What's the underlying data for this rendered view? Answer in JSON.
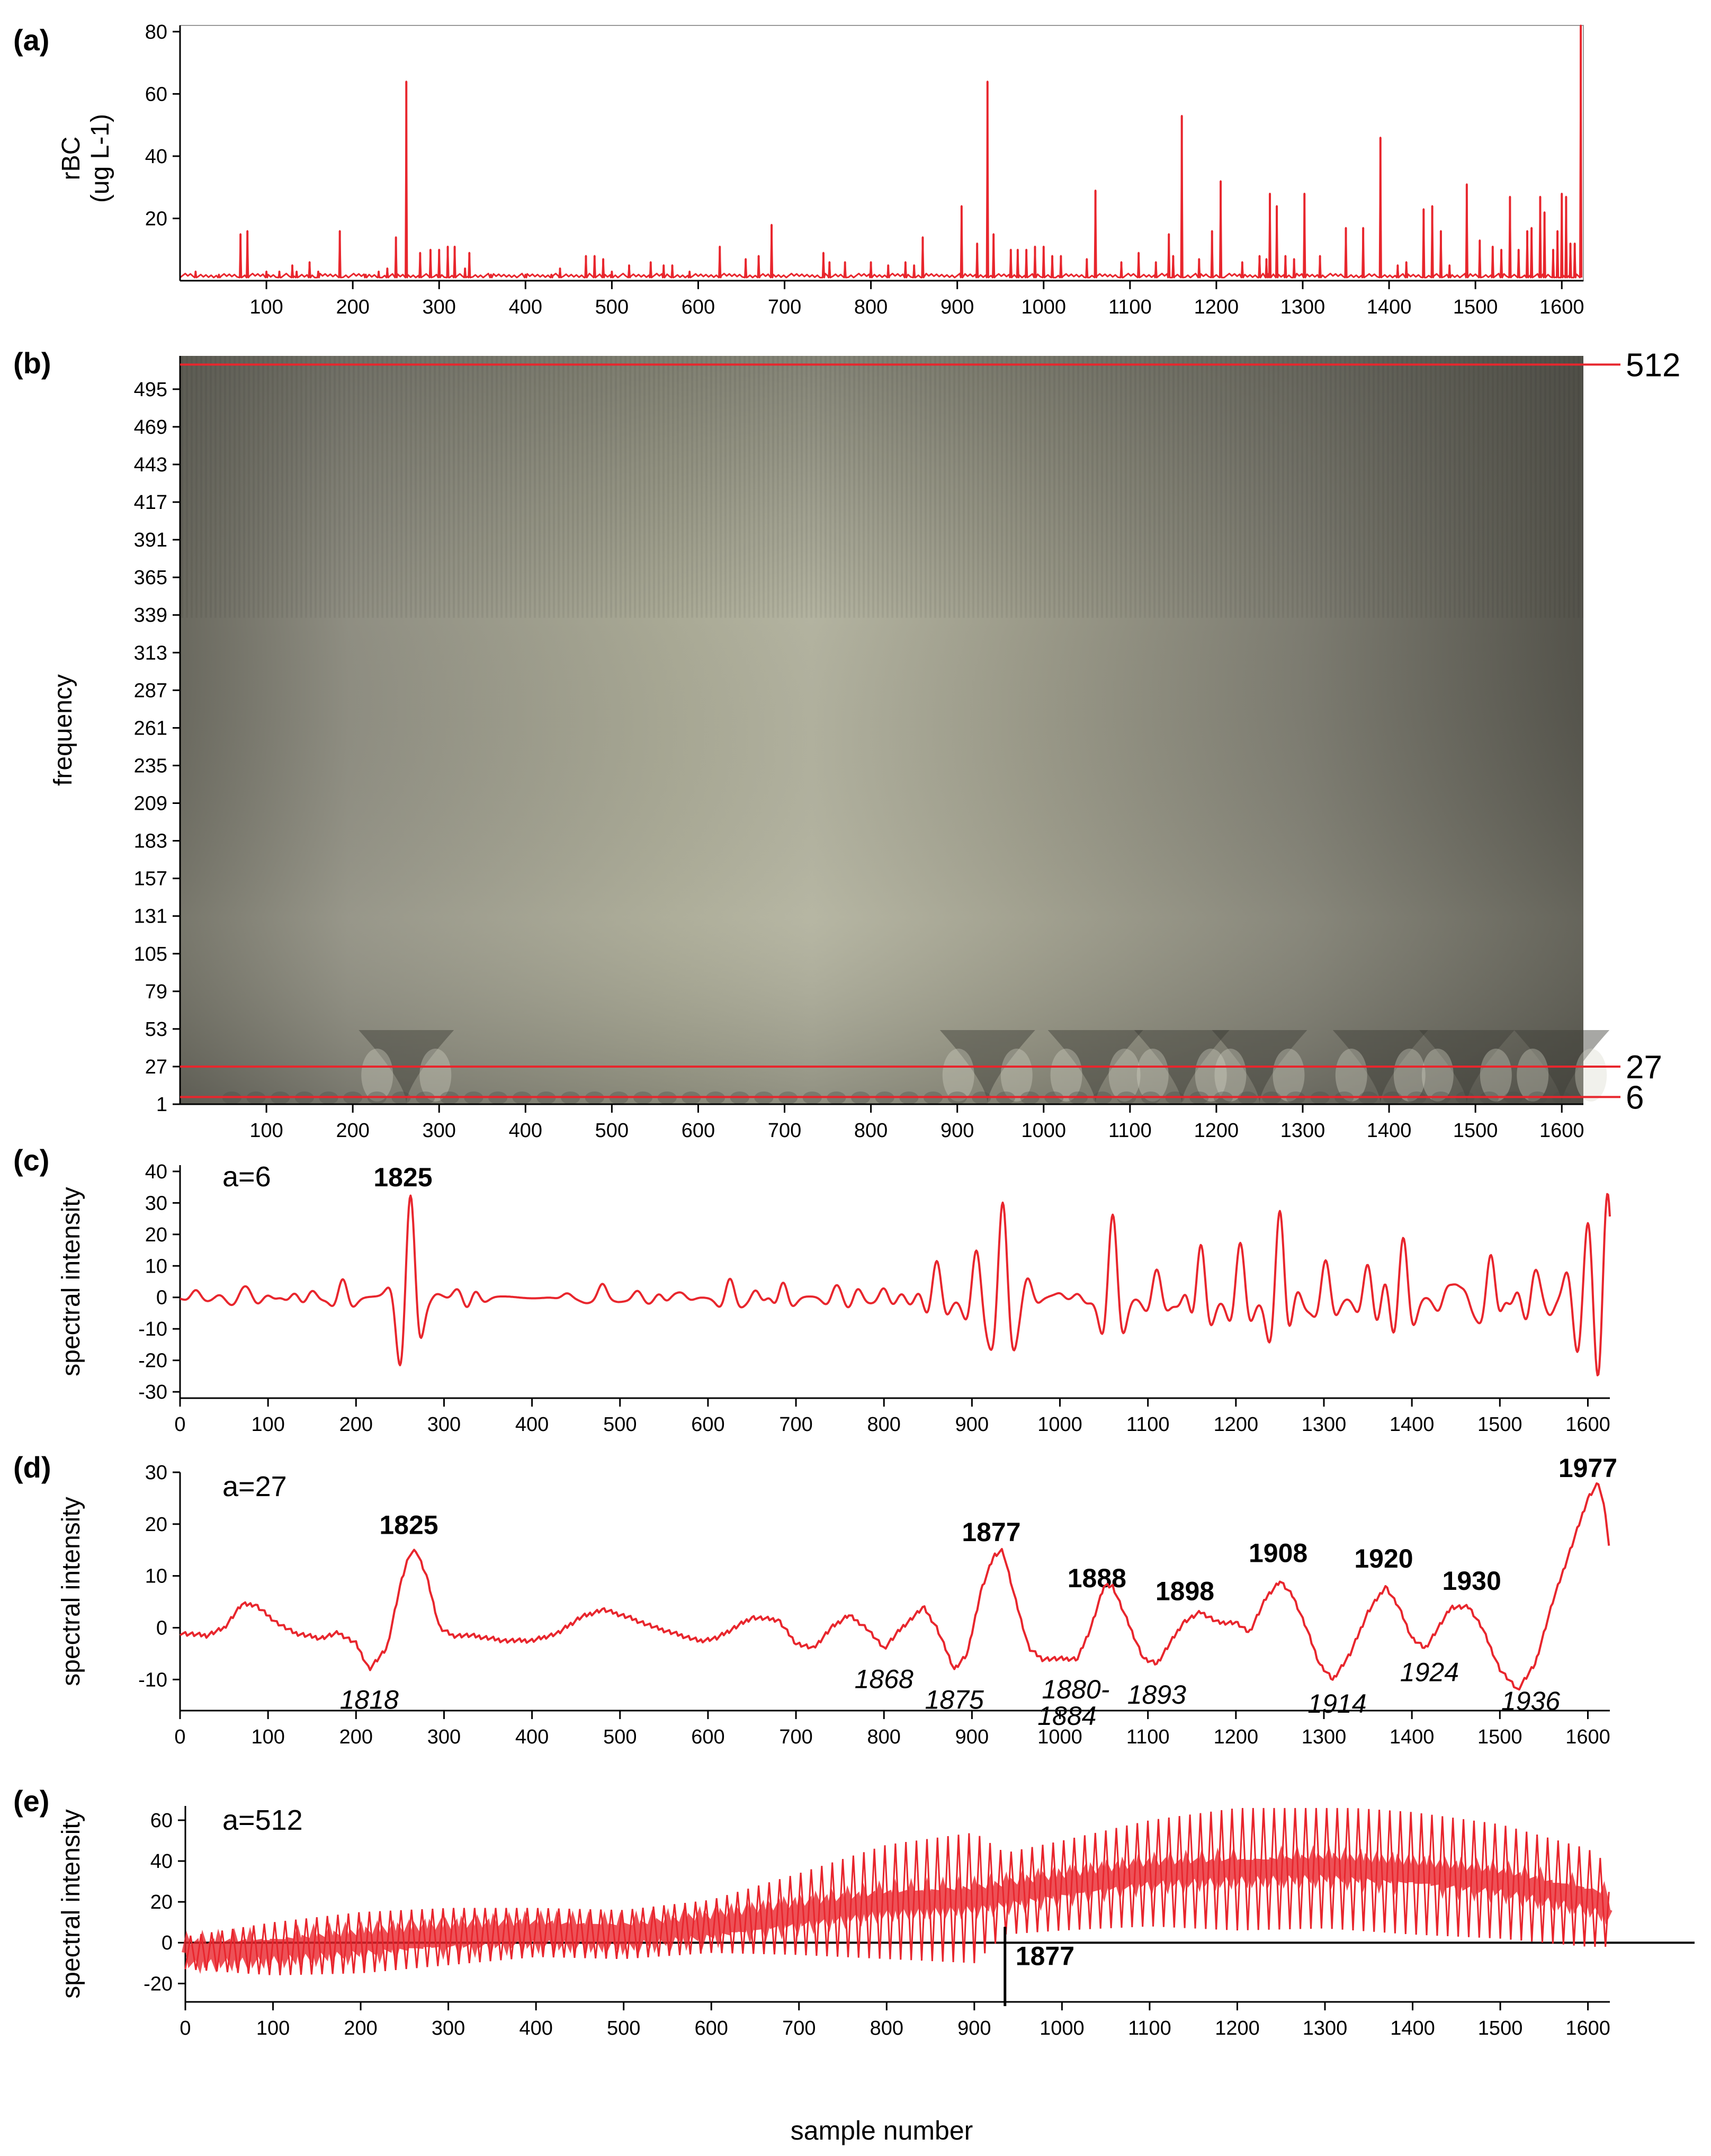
{
  "colors": {
    "series": "#e8262d",
    "axis": "#000000",
    "marker": "#e8262d",
    "spectrogram_light": "#b5b5a0",
    "spectrogram_dark": "#55544c"
  },
  "xlabel": "sample number",
  "chart_data": [
    {
      "id": "a",
      "panel_label": "(a)",
      "type": "line",
      "ylabel_main": "rBC",
      "ylabel_unit": "(ug L-1)",
      "xlim": [
        0,
        1625
      ],
      "ylim": [
        0,
        82
      ],
      "xticks": [
        100,
        200,
        300,
        400,
        500,
        600,
        700,
        800,
        900,
        1000,
        1100,
        1200,
        1300,
        1400,
        1500,
        1600
      ],
      "yticks": [
        20,
        40,
        60,
        80
      ],
      "baseline": 1,
      "peaks": [
        [
          18,
          3
        ],
        [
          45,
          2
        ],
        [
          70,
          15
        ],
        [
          78,
          16
        ],
        [
          100,
          3
        ],
        [
          115,
          3
        ],
        [
          130,
          5
        ],
        [
          135,
          3
        ],
        [
          150,
          6
        ],
        [
          160,
          3
        ],
        [
          185,
          16
        ],
        [
          215,
          2
        ],
        [
          230,
          3
        ],
        [
          240,
          4
        ],
        [
          250,
          14
        ],
        [
          262,
          64
        ],
        [
          278,
          9
        ],
        [
          290,
          10
        ],
        [
          300,
          10
        ],
        [
          310,
          11
        ],
        [
          318,
          11
        ],
        [
          330,
          4
        ],
        [
          335,
          9
        ],
        [
          360,
          2
        ],
        [
          400,
          2
        ],
        [
          430,
          2
        ],
        [
          440,
          4
        ],
        [
          470,
          8
        ],
        [
          480,
          8
        ],
        [
          490,
          7
        ],
        [
          500,
          3
        ],
        [
          520,
          5
        ],
        [
          545,
          6
        ],
        [
          560,
          5
        ],
        [
          570,
          5
        ],
        [
          590,
          3
        ],
        [
          625,
          11
        ],
        [
          655,
          7
        ],
        [
          670,
          8
        ],
        [
          685,
          18
        ],
        [
          745,
          9
        ],
        [
          752,
          6
        ],
        [
          770,
          6
        ],
        [
          800,
          6
        ],
        [
          820,
          5
        ],
        [
          840,
          6
        ],
        [
          850,
          5
        ],
        [
          860,
          14
        ],
        [
          905,
          24
        ],
        [
          923,
          12
        ],
        [
          935,
          64
        ],
        [
          942,
          15
        ],
        [
          962,
          10
        ],
        [
          970,
          10
        ],
        [
          980,
          10
        ],
        [
          990,
          11
        ],
        [
          1000,
          11
        ],
        [
          1010,
          8
        ],
        [
          1020,
          8
        ],
        [
          1050,
          7
        ],
        [
          1060,
          29
        ],
        [
          1090,
          6
        ],
        [
          1110,
          9
        ],
        [
          1130,
          6
        ],
        [
          1145,
          15
        ],
        [
          1150,
          8
        ],
        [
          1160,
          53
        ],
        [
          1180,
          7
        ],
        [
          1195,
          16
        ],
        [
          1205,
          32
        ],
        [
          1230,
          6
        ],
        [
          1250,
          8
        ],
        [
          1258,
          7
        ],
        [
          1262,
          28
        ],
        [
          1270,
          24
        ],
        [
          1280,
          8
        ],
        [
          1290,
          7
        ],
        [
          1302,
          28
        ],
        [
          1320,
          8
        ],
        [
          1350,
          17
        ],
        [
          1370,
          17
        ],
        [
          1390,
          46
        ],
        [
          1410,
          5
        ],
        [
          1420,
          6
        ],
        [
          1440,
          23
        ],
        [
          1450,
          24
        ],
        [
          1460,
          16
        ],
        [
          1470,
          5
        ],
        [
          1490,
          31
        ],
        [
          1505,
          13
        ],
        [
          1520,
          11
        ],
        [
          1530,
          10
        ],
        [
          1540,
          27
        ],
        [
          1550,
          10
        ],
        [
          1560,
          16
        ],
        [
          1565,
          17
        ],
        [
          1575,
          27
        ],
        [
          1580,
          22
        ],
        [
          1590,
          10
        ],
        [
          1595,
          16
        ],
        [
          1600,
          28
        ],
        [
          1605,
          27
        ],
        [
          1610,
          12
        ],
        [
          1615,
          12
        ],
        [
          1622,
          82
        ]
      ]
    },
    {
      "id": "b",
      "panel_label": "(b)",
      "type": "heatmap",
      "ylabel": "frequency",
      "xlim": [
        0,
        1625
      ],
      "ylim": [
        1,
        518
      ],
      "xticks": [
        100,
        200,
        300,
        400,
        500,
        600,
        700,
        800,
        900,
        1000,
        1100,
        1200,
        1300,
        1400,
        1500,
        1600
      ],
      "yticks": [
        1,
        27,
        53,
        79,
        105,
        131,
        157,
        183,
        209,
        235,
        261,
        287,
        313,
        339,
        365,
        391,
        417,
        443,
        469,
        495
      ],
      "marker_lines": [
        {
          "value": 512,
          "label": "512"
        },
        {
          "value": 27,
          "label": "27"
        },
        {
          "value": 6,
          "label": "6"
        }
      ],
      "cone_centers": [
        262,
        935,
        1060,
        1160,
        1250,
        1390,
        1490,
        1600
      ]
    },
    {
      "id": "c",
      "panel_label": "(c)",
      "type": "line",
      "ylabel": "spectral intensity",
      "annotation": "a=6",
      "xlim": [
        0,
        1625
      ],
      "ylim": [
        -32,
        42
      ],
      "xticks": [
        0,
        100,
        200,
        300,
        400,
        500,
        600,
        700,
        800,
        900,
        1000,
        1100,
        1200,
        1300,
        1400,
        1500,
        1600
      ],
      "yticks": [
        -30,
        -20,
        -10,
        0,
        10,
        20,
        30,
        40
      ],
      "wavelets": [
        [
          18,
          2
        ],
        [
          45,
          1
        ],
        [
          70,
          3
        ],
        [
          78,
          3
        ],
        [
          100,
          1
        ],
        [
          115,
          1
        ],
        [
          130,
          2
        ],
        [
          150,
          2
        ],
        [
          185,
          6
        ],
        [
          250,
          -8
        ],
        [
          262,
          30
        ],
        [
          278,
          3
        ],
        [
          290,
          4
        ],
        [
          300,
          4
        ],
        [
          310,
          4
        ],
        [
          318,
          4
        ],
        [
          335,
          3
        ],
        [
          440,
          1
        ],
        [
          470,
          2
        ],
        [
          480,
          6
        ],
        [
          490,
          2
        ],
        [
          520,
          2
        ],
        [
          545,
          2
        ],
        [
          560,
          2
        ],
        [
          570,
          2
        ],
        [
          625,
          6
        ],
        [
          655,
          3
        ],
        [
          670,
          3
        ],
        [
          685,
          6
        ],
        [
          745,
          4
        ],
        [
          752,
          2
        ],
        [
          770,
          3
        ],
        [
          800,
          3
        ],
        [
          820,
          2
        ],
        [
          840,
          3
        ],
        [
          850,
          1
        ],
        [
          860,
          12
        ],
        [
          905,
          15
        ],
        [
          935,
          30
        ],
        [
          962,
          8
        ],
        [
          970,
          5
        ],
        [
          980,
          5
        ],
        [
          990,
          5
        ],
        [
          1000,
          5
        ],
        [
          1010,
          3
        ],
        [
          1020,
          3
        ],
        [
          1060,
          26
        ],
        [
          1110,
          9
        ],
        [
          1145,
          6
        ],
        [
          1160,
          19
        ],
        [
          1205,
          17
        ],
        [
          1250,
          31
        ],
        [
          1262,
          6
        ],
        [
          1270,
          6
        ],
        [
          1302,
          12
        ],
        [
          1350,
          11
        ],
        [
          1370,
          8
        ],
        [
          1390,
          20
        ],
        [
          1440,
          8
        ],
        [
          1450,
          10
        ],
        [
          1460,
          7
        ],
        [
          1490,
          15
        ],
        [
          1505,
          5
        ],
        [
          1520,
          5
        ],
        [
          1540,
          11
        ],
        [
          1550,
          5
        ],
        [
          1565,
          6
        ],
        [
          1575,
          9
        ],
        [
          1580,
          6
        ],
        [
          1595,
          5
        ],
        [
          1600,
          22
        ],
        [
          1605,
          8
        ],
        [
          1622,
          36
        ]
      ]
    },
    {
      "id": "d",
      "panel_label": "(d)",
      "type": "line",
      "ylabel": "spectral intensity",
      "annotation": "a=27",
      "xlim": [
        0,
        1625
      ],
      "ylim": [
        -16,
        30
      ],
      "xticks": [
        0,
        100,
        200,
        300,
        400,
        500,
        600,
        700,
        800,
        900,
        1000,
        1100,
        1200,
        1300,
        1400,
        1500,
        1600
      ],
      "yticks": [
        -10,
        0,
        10,
        20,
        30
      ],
      "points": [
        [
          0,
          -1
        ],
        [
          30,
          -1.5
        ],
        [
          50,
          0
        ],
        [
          70,
          4.5
        ],
        [
          85,
          4.5
        ],
        [
          110,
          1
        ],
        [
          130,
          -1
        ],
        [
          160,
          -2
        ],
        [
          180,
          -1
        ],
        [
          200,
          -3
        ],
        [
          215,
          -8
        ],
        [
          235,
          -4
        ],
        [
          250,
          8
        ],
        [
          260,
          14
        ],
        [
          268,
          15
        ],
        [
          280,
          10
        ],
        [
          295,
          0
        ],
        [
          310,
          -1.5
        ],
        [
          330,
          -1.5
        ],
        [
          370,
          -2.5
        ],
        [
          400,
          -2.5
        ],
        [
          430,
          -1
        ],
        [
          455,
          2
        ],
        [
          480,
          3.5
        ],
        [
          510,
          2
        ],
        [
          540,
          0
        ],
        [
          560,
          -1
        ],
        [
          590,
          -2.5
        ],
        [
          610,
          -2
        ],
        [
          630,
          0
        ],
        [
          650,
          2
        ],
        [
          680,
          1.5
        ],
        [
          700,
          -3
        ],
        [
          720,
          -4
        ],
        [
          740,
          0
        ],
        [
          760,
          2.5
        ],
        [
          780,
          0
        ],
        [
          800,
          -4
        ],
        [
          820,
          0
        ],
        [
          845,
          4
        ],
        [
          860,
          0
        ],
        [
          880,
          -8
        ],
        [
          895,
          -5
        ],
        [
          910,
          7
        ],
        [
          925,
          14
        ],
        [
          935,
          15
        ],
        [
          950,
          5
        ],
        [
          965,
          -4
        ],
        [
          980,
          -6
        ],
        [
          1000,
          -6
        ],
        [
          1020,
          -6
        ],
        [
          1035,
          0
        ],
        [
          1050,
          8
        ],
        [
          1060,
          8
        ],
        [
          1080,
          0
        ],
        [
          1095,
          -6
        ],
        [
          1110,
          -7
        ],
        [
          1125,
          -3
        ],
        [
          1140,
          1
        ],
        [
          1160,
          3
        ],
        [
          1180,
          1
        ],
        [
          1200,
          1
        ],
        [
          1215,
          -1
        ],
        [
          1235,
          6
        ],
        [
          1250,
          9
        ],
        [
          1265,
          6
        ],
        [
          1280,
          0
        ],
        [
          1295,
          -7
        ],
        [
          1310,
          -10
        ],
        [
          1330,
          -5
        ],
        [
          1350,
          3
        ],
        [
          1370,
          8
        ],
        [
          1385,
          4
        ],
        [
          1400,
          -2
        ],
        [
          1415,
          -4
        ],
        [
          1430,
          0
        ],
        [
          1445,
          4
        ],
        [
          1465,
          4
        ],
        [
          1480,
          0
        ],
        [
          1500,
          -8
        ],
        [
          1520,
          -12
        ],
        [
          1540,
          -7
        ],
        [
          1560,
          5
        ],
        [
          1580,
          15
        ],
        [
          1600,
          25
        ],
        [
          1612,
          28
        ],
        [
          1620,
          22
        ],
        [
          1625,
          14
        ]
      ],
      "labels_bold": [
        [
          260,
          "1825"
        ],
        [
          922,
          "1877"
        ],
        [
          1042,
          "1888"
        ],
        [
          1142,
          "1898"
        ],
        [
          1248,
          "1908"
        ],
        [
          1368,
          "1920"
        ],
        [
          1468,
          "1930"
        ],
        [
          1600,
          "1977"
        ]
      ],
      "labels_italic": [
        [
          215,
          "1818"
        ],
        [
          800,
          "1868"
        ],
        [
          880,
          "1875"
        ],
        [
          1018,
          "1880-"
        ],
        [
          1008,
          "1884"
        ],
        [
          1110,
          "1893"
        ],
        [
          1315,
          "1914"
        ],
        [
          1420,
          "1924"
        ],
        [
          1535,
          "1936"
        ]
      ]
    },
    {
      "id": "e",
      "panel_label": "(e)",
      "type": "line",
      "ylabel": "spectral intensity",
      "annotation": "a=512",
      "xlim": [
        0,
        1625
      ],
      "ylim": [
        -29,
        67
      ],
      "xticks": [
        0,
        100,
        200,
        300,
        400,
        500,
        600,
        700,
        800,
        900,
        1000,
        1100,
        1200,
        1300,
        1400,
        1500,
        1600
      ],
      "yticks": [
        -20,
        0,
        20,
        40,
        60
      ],
      "marker": {
        "x": 935,
        "label": "1877"
      },
      "center": [
        [
          0,
          -5
        ],
        [
          100,
          -3
        ],
        [
          200,
          0
        ],
        [
          300,
          3
        ],
        [
          400,
          5
        ],
        [
          500,
          4
        ],
        [
          600,
          8
        ],
        [
          700,
          14
        ],
        [
          800,
          20
        ],
        [
          900,
          22
        ],
        [
          935,
          24
        ],
        [
          1000,
          28
        ],
        [
          1100,
          34
        ],
        [
          1200,
          36
        ],
        [
          1300,
          37
        ],
        [
          1400,
          34
        ],
        [
          1500,
          30
        ],
        [
          1600,
          22
        ],
        [
          1625,
          18
        ]
      ],
      "amplitude": [
        [
          0,
          8
        ],
        [
          100,
          13
        ],
        [
          200,
          15
        ],
        [
          300,
          14
        ],
        [
          400,
          12
        ],
        [
          500,
          12
        ],
        [
          600,
          13
        ],
        [
          700,
          20
        ],
        [
          800,
          28
        ],
        [
          900,
          32
        ],
        [
          935,
          20
        ],
        [
          1000,
          22
        ],
        [
          1100,
          26
        ],
        [
          1200,
          30
        ],
        [
          1300,
          30
        ],
        [
          1400,
          30
        ],
        [
          1500,
          28
        ],
        [
          1600,
          24
        ],
        [
          1625,
          20
        ]
      ],
      "clip_max": 66
    }
  ]
}
